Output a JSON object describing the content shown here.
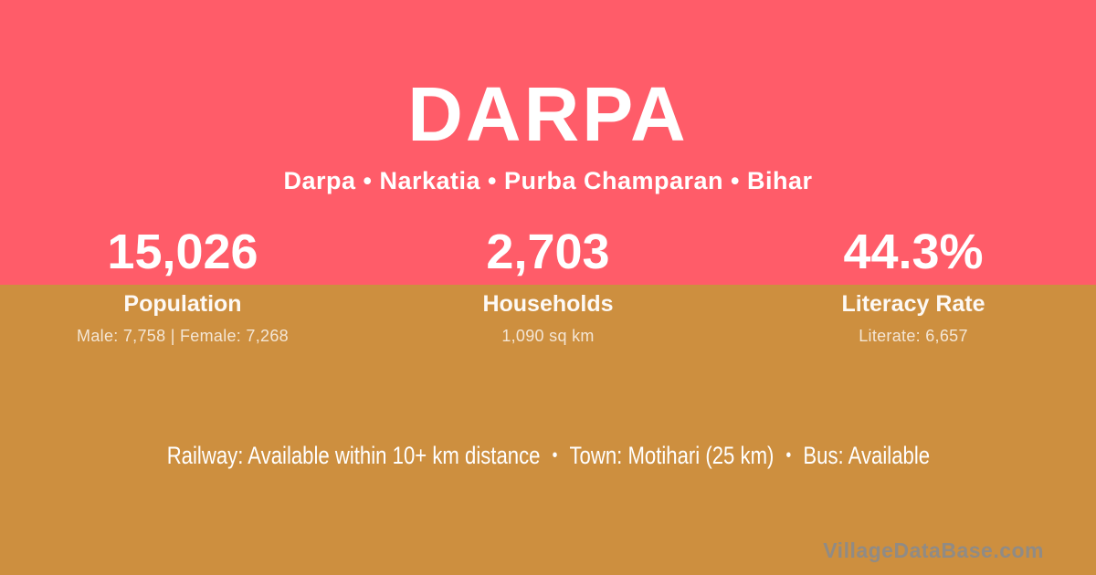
{
  "header": {
    "title": "DARPA",
    "subtitle": "Darpa • Narkatia • Purba Champaran • Bihar"
  },
  "stats": [
    {
      "value": "15,026",
      "label": "Population",
      "detail": "Male: 7,758 | Female: 7,268"
    },
    {
      "value": "2,703",
      "label": "Households",
      "detail": "1,090 sq km"
    },
    {
      "value": "44.3%",
      "label": "Literacy Rate",
      "detail": "Literate: 6,657"
    }
  ],
  "info_bar": {
    "railway": "Railway: Available within 10+ km distance",
    "separator": "•",
    "town": "Town: Motihari (25 km)",
    "bus": "Bus: Available"
  },
  "watermark": "VillageDataBase.com",
  "colors": {
    "top_bg": "#ff5c69",
    "bottom_bg": "#cd8f3f",
    "text": "#ffffff",
    "watermark": "#8b8b8b"
  }
}
